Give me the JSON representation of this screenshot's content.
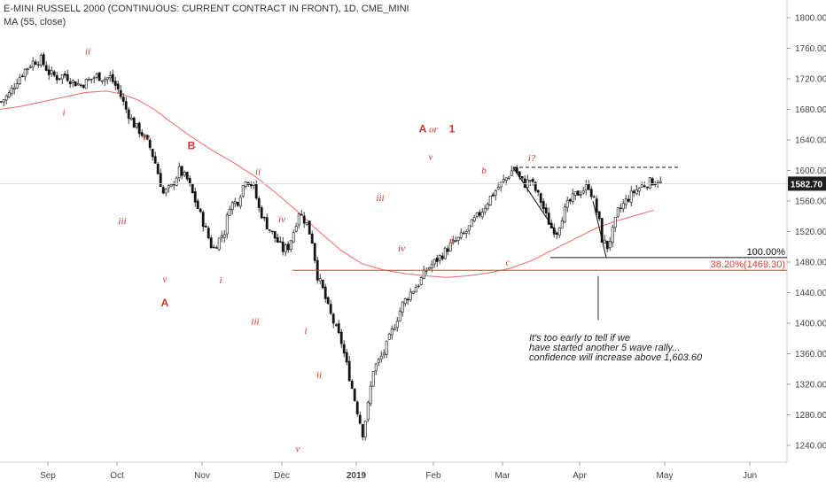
{
  "header": {
    "title": "E-MINI RUSSELL 2000 (CONTINUOUS: CURRENT CONTRACT IN FRONT), 1D, CME_MINI",
    "indicator": "MA (55, close)"
  },
  "colors": {
    "ma": "#ef6a6a",
    "fib_red": "#e53935",
    "fib_black": "#111111",
    "wave": "#d32f2f",
    "last_price_bg": "#1f1f1f",
    "candle_up": "#ffffff",
    "candle_down": "#111111"
  },
  "chart_data": {
    "type": "candlestick",
    "ylim": [
      1230,
      1820
    ],
    "y_ticks": [
      "1240.00",
      "1280.00",
      "1320.00",
      "1360.00",
      "1400.00",
      "1440.00",
      "1480.00",
      "1520.00",
      "1560.00",
      "1600.00",
      "1640.00",
      "1680.00",
      "1720.00",
      "1760.00",
      "1800.00"
    ],
    "x_labels": [
      "Sep",
      "Oct",
      "Nov",
      "Dec",
      "2019",
      "Feb",
      "Mar",
      "Apr",
      "May",
      "Jun"
    ],
    "last_price": "1582.70",
    "ohlc_path": [
      [
        0,
        1690
      ],
      [
        3,
        1700
      ],
      [
        6,
        1718
      ],
      [
        9,
        1732
      ],
      [
        12,
        1742
      ],
      [
        15,
        1745
      ],
      [
        18,
        1728
      ],
      [
        21,
        1722
      ],
      [
        24,
        1725
      ],
      [
        27,
        1716
      ],
      [
        30,
        1712
      ],
      [
        33,
        1718
      ],
      [
        36,
        1724
      ],
      [
        39,
        1720
      ],
      [
        41,
        1722
      ],
      [
        44,
        1706
      ],
      [
        47,
        1680
      ],
      [
        50,
        1660
      ],
      [
        53,
        1648
      ],
      [
        56,
        1630
      ],
      [
        58,
        1610
      ],
      [
        61,
        1570
      ],
      [
        64,
        1578
      ],
      [
        67,
        1600
      ],
      [
        70,
        1588
      ],
      [
        73,
        1560
      ],
      [
        76,
        1532
      ],
      [
        79,
        1502
      ],
      [
        80,
        1498
      ],
      [
        82,
        1510
      ],
      [
        84,
        1520
      ],
      [
        86,
        1555
      ],
      [
        89,
        1560
      ],
      [
        92,
        1590
      ],
      [
        95,
        1578
      ],
      [
        97,
        1550
      ],
      [
        100,
        1528
      ],
      [
        103,
        1512
      ],
      [
        106,
        1496
      ],
      [
        108,
        1500
      ],
      [
        110,
        1520
      ],
      [
        112,
        1546
      ],
      [
        115,
        1530
      ],
      [
        117,
        1508
      ],
      [
        119,
        1462
      ],
      [
        121,
        1444
      ],
      [
        123,
        1420
      ],
      [
        126,
        1392
      ],
      [
        128,
        1375
      ],
      [
        131,
        1330
      ],
      [
        133,
        1300
      ],
      [
        136,
        1256
      ],
      [
        138,
        1292
      ],
      [
        140,
        1340
      ],
      [
        142,
        1350
      ],
      [
        144,
        1362
      ],
      [
        146,
        1380
      ],
      [
        148,
        1398
      ],
      [
        151,
        1425
      ],
      [
        154,
        1440
      ],
      [
        157,
        1452
      ],
      [
        160,
        1470
      ],
      [
        163,
        1480
      ],
      [
        166,
        1490
      ],
      [
        169,
        1502
      ],
      [
        172,
        1510
      ],
      [
        175,
        1520
      ],
      [
        178,
        1535
      ],
      [
        181,
        1548
      ],
      [
        184,
        1565
      ],
      [
        187,
        1578
      ],
      [
        190,
        1590
      ],
      [
        193,
        1604
      ],
      [
        195,
        1590
      ],
      [
        197,
        1582
      ],
      [
        199,
        1588
      ],
      [
        201,
        1574
      ],
      [
        203,
        1560
      ],
      [
        205,
        1540
      ],
      [
        207,
        1525
      ],
      [
        209,
        1520
      ],
      [
        211,
        1540
      ],
      [
        213,
        1555
      ],
      [
        216,
        1568
      ],
      [
        219,
        1575
      ],
      [
        221,
        1580
      ],
      [
        223,
        1560
      ],
      [
        225,
        1532
      ],
      [
        226,
        1510
      ],
      [
        228,
        1500
      ],
      [
        230,
        1520
      ],
      [
        232,
        1546
      ],
      [
        235,
        1560
      ],
      [
        238,
        1572
      ],
      [
        241,
        1580
      ],
      [
        244,
        1585
      ],
      [
        247,
        1586
      ],
      [
        248,
        1583
      ]
    ],
    "ma_line": [
      [
        0,
        1680
      ],
      [
        8,
        1684
      ],
      [
        16,
        1690
      ],
      [
        24,
        1696
      ],
      [
        32,
        1702
      ],
      [
        40,
        1704
      ],
      [
        46,
        1700
      ],
      [
        52,
        1692
      ],
      [
        58,
        1680
      ],
      [
        64,
        1664
      ],
      [
        72,
        1644
      ],
      [
        80,
        1626
      ],
      [
        88,
        1610
      ],
      [
        96,
        1592
      ],
      [
        104,
        1570
      ],
      [
        112,
        1546
      ],
      [
        120,
        1520
      ],
      [
        128,
        1496
      ],
      [
        136,
        1478
      ],
      [
        144,
        1470
      ],
      [
        152,
        1465
      ],
      [
        160,
        1462
      ],
      [
        168,
        1460
      ],
      [
        176,
        1462
      ],
      [
        184,
        1466
      ],
      [
        192,
        1472
      ],
      [
        200,
        1482
      ],
      [
        208,
        1496
      ],
      [
        216,
        1510
      ],
      [
        224,
        1524
      ],
      [
        232,
        1534
      ],
      [
        240,
        1542
      ],
      [
        246,
        1548
      ]
    ],
    "fib_levels": [
      {
        "label": "100.00%",
        "value": 1486,
        "color": "#111111",
        "start_day": 207
      },
      {
        "label": "38.20%(1469.30)",
        "value": 1469.3,
        "color": "#e53935",
        "start_day": 110
      }
    ],
    "resistance": {
      "value": 1604,
      "start_day": 193,
      "end_day": 256
    },
    "wave_labels": [
      {
        "text": "ii",
        "day": 33,
        "price": 1752,
        "style": "roman"
      },
      {
        "text": "i",
        "day": 24,
        "price": 1672,
        "style": "roman"
      },
      {
        "text": "iv",
        "day": 55,
        "price": 1640,
        "style": "roman"
      },
      {
        "text": "B",
        "day": 72,
        "price": 1628,
        "style": "bold"
      },
      {
        "text": "iii",
        "day": 46,
        "price": 1530,
        "style": "roman"
      },
      {
        "text": "v",
        "day": 62,
        "price": 1454,
        "style": "roman"
      },
      {
        "text": "A",
        "day": 62,
        "price": 1422,
        "style": "bold"
      },
      {
        "text": "ii",
        "day": 97,
        "price": 1594,
        "style": "roman"
      },
      {
        "text": "iv",
        "day": 106,
        "price": 1532,
        "style": "roman"
      },
      {
        "text": "i",
        "day": 83,
        "price": 1452,
        "style": "roman"
      },
      {
        "text": "iii",
        "day": 96,
        "price": 1398,
        "style": "roman"
      },
      {
        "text": "i",
        "day": 115,
        "price": 1386,
        "style": "roman"
      },
      {
        "text": "ii",
        "day": 120,
        "price": 1328,
        "style": "roman"
      },
      {
        "text": "v",
        "day": 112,
        "price": 1232,
        "style": "roman"
      },
      {
        "text": "iii",
        "day": 143,
        "price": 1560,
        "style": "roman"
      },
      {
        "text": "iv",
        "day": 151,
        "price": 1494,
        "style": "roman"
      },
      {
        "text": "v",
        "day": 162,
        "price": 1614,
        "style": "roman"
      },
      {
        "text": "A",
        "day": 159,
        "price": 1650,
        "style": "bold"
      },
      {
        "text": "or",
        "day": 163,
        "price": 1650,
        "style": "roman"
      },
      {
        "text": "1",
        "day": 170,
        "price": 1650,
        "style": "bold"
      },
      {
        "text": "a",
        "day": 170,
        "price": 1505,
        "style": "roman"
      },
      {
        "text": "b",
        "day": 182,
        "price": 1596,
        "style": "roman"
      },
      {
        "text": "c",
        "day": 191,
        "price": 1476,
        "style": "roman"
      },
      {
        "text": "i?",
        "day": 200,
        "price": 1612,
        "style": "roman"
      }
    ],
    "note_lines": [
      "It's too early to tell if we",
      "have started another 5 wave rally...",
      "confidence will increase above 1,603.60"
    ]
  }
}
